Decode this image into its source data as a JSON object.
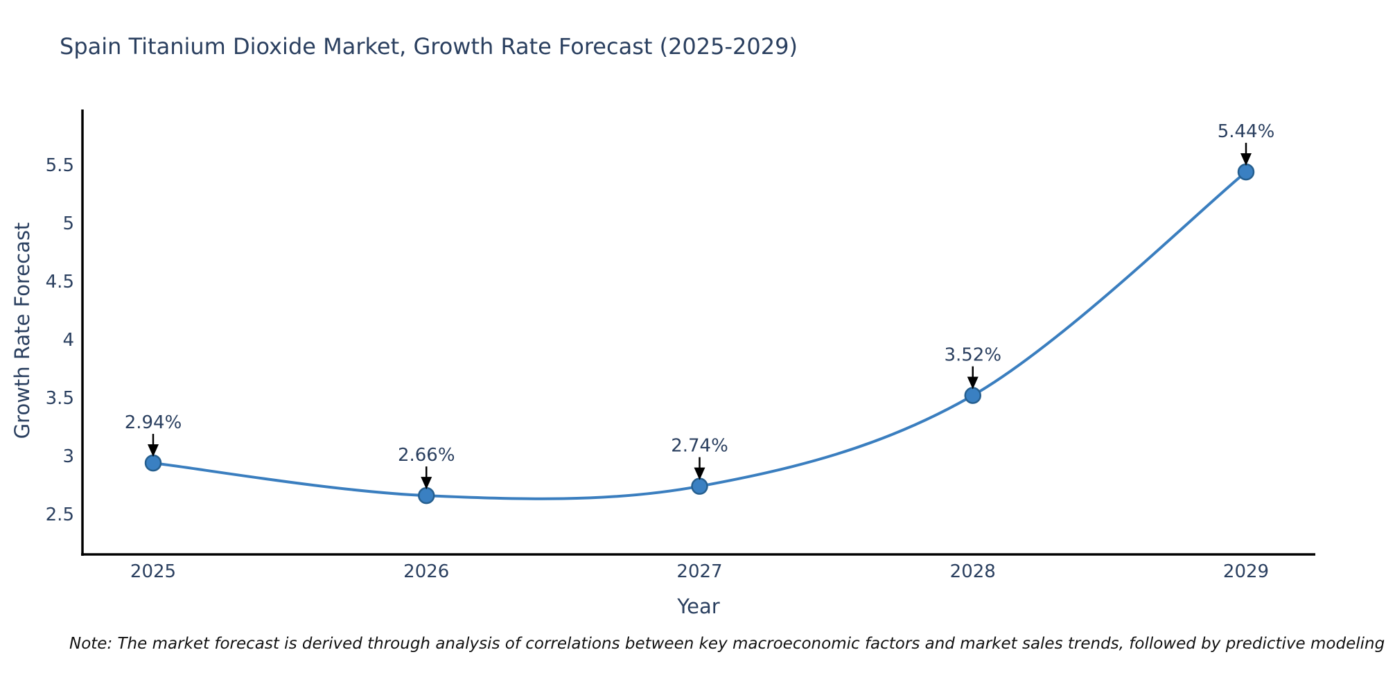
{
  "title": "Spain Titanium Dioxide Market, Growth Rate Forecast (2025-2029)",
  "note": "Note: The market forecast is derived through analysis of correlations between key macroeconomic factors and market sales trends, followed by predictive modeling to project future sales",
  "chart_data": {
    "type": "line",
    "title": "Spain Titanium Dioxide Market, Growth Rate Forecast (2025-2029)",
    "x": [
      2025,
      2026,
      2027,
      2028,
      2029
    ],
    "values": [
      2.94,
      2.66,
      2.74,
      3.52,
      5.44
    ],
    "point_labels": [
      "2.94%",
      "2.66%",
      "2.74%",
      "3.52%",
      "5.44%"
    ],
    "xticks": [
      "2025",
      "2026",
      "2027",
      "2028",
      "2029"
    ],
    "yticks": [
      2.5,
      3,
      3.5,
      4,
      4.5,
      5,
      5.5
    ],
    "ylim": [
      2.155,
      5.976
    ],
    "xlabel": "Year",
    "ylabel": "Growth Rate Forecast",
    "grid": false,
    "legend": false,
    "line_shape": "spline",
    "colors": {
      "line": "#3a7ebf",
      "marker_fill": "#3a80c2",
      "marker_edge": "#265f8f",
      "annotation_text": "#2a3f5f",
      "annotation_arrow": "#000000",
      "axis_line": "#000000",
      "tick_label": "#2a3f5f",
      "title": "#2a3f5f",
      "background": "#ffffff"
    }
  }
}
